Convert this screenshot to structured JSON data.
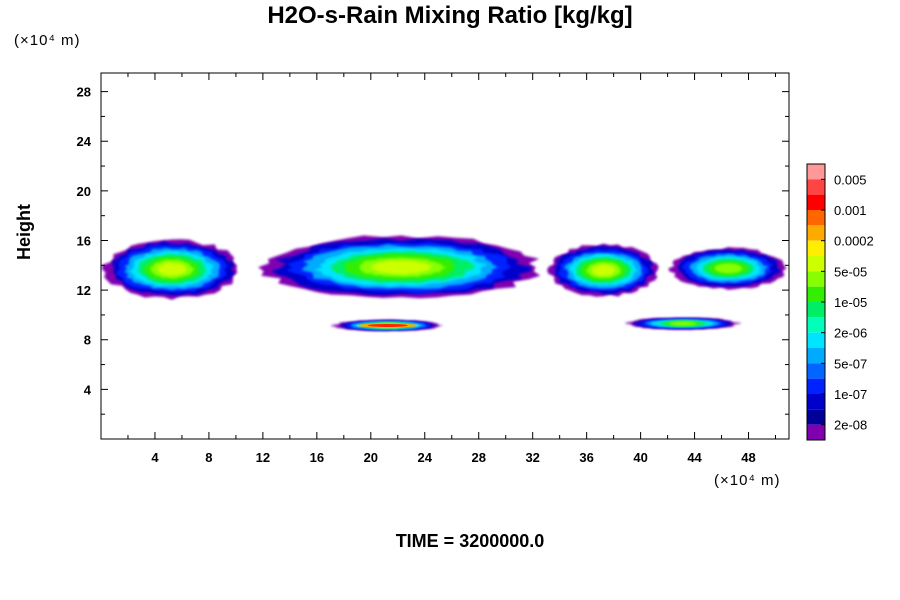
{
  "title": "H2O-s-Rain Mixing Ratio [kg/kg]",
  "y_unit_label": "(×10⁴ m)",
  "x_unit_label": "(×10⁴ m)",
  "ylabel": "Height",
  "footer": "TIME = 3200000.0",
  "chart_data": {
    "type": "heatmap",
    "title": "H2O-s-Rain Mixing Ratio [kg/kg]",
    "xlabel": "",
    "ylabel": "Height",
    "xlim": [
      0,
      51
    ],
    "ylim": [
      0,
      29.5
    ],
    "x_ticks": [
      4,
      8,
      12,
      16,
      20,
      24,
      28,
      32,
      36,
      40,
      44,
      48
    ],
    "y_ticks": [
      4,
      8,
      12,
      16,
      20,
      24,
      28
    ],
    "colorbar": {
      "labels": [
        "0.005",
        "0.001",
        "0.0002",
        "5e-05",
        "1e-05",
        "2e-06",
        "5e-07",
        "1e-07",
        "2e-08"
      ],
      "colors": [
        "#ff9999",
        "#ff4444",
        "#ff0000",
        "#ff6600",
        "#ffaa00",
        "#ffee00",
        "#ccff00",
        "#88ff00",
        "#33ee00",
        "#00ee66",
        "#00ffbb",
        "#00e5ff",
        "#00aaff",
        "#0066ff",
        "#0022ff",
        "#0000cc",
        "#000099",
        "#8000b0"
      ]
    },
    "regions": [
      {
        "name": "upper-layer-west",
        "x_range": [
          0,
          10.5
        ],
        "y_range": [
          11.2,
          16.2
        ],
        "core_level": "5e-05"
      },
      {
        "name": "upper-layer-center",
        "x_range": [
          11.5,
          33
        ],
        "y_range": [
          11.2,
          16.5
        ],
        "core_level": "5e-05"
      },
      {
        "name": "upper-layer-east-1",
        "x_range": [
          33,
          41.5
        ],
        "y_range": [
          11.4,
          15.8
        ],
        "core_level": "5e-05"
      },
      {
        "name": "upper-layer-east-2",
        "x_range": [
          42,
          51
        ],
        "y_range": [
          12.0,
          15.5
        ],
        "core_level": "1e-05"
      },
      {
        "name": "lower-layer-west",
        "x_range": [
          17,
          25.5
        ],
        "y_range": [
          8.7,
          9.6
        ],
        "core_level": "0.001"
      },
      {
        "name": "lower-layer-east",
        "x_range": [
          38.8,
          47.5
        ],
        "y_range": [
          8.8,
          9.8
        ],
        "core_level": "1e-05"
      }
    ]
  }
}
